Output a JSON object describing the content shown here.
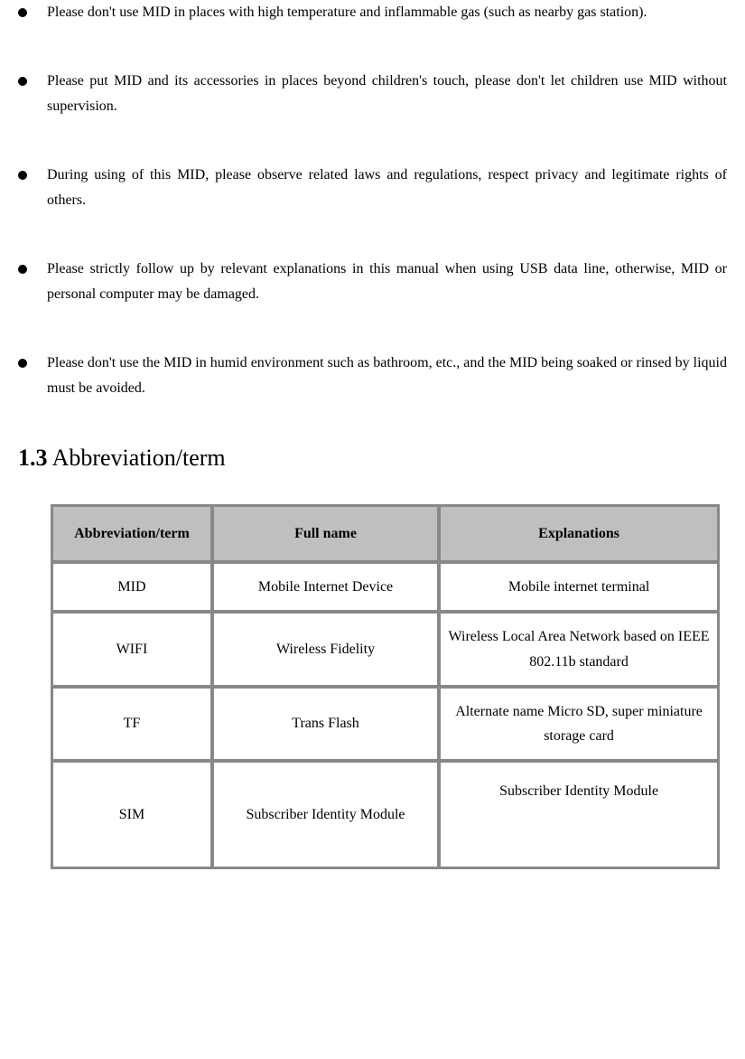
{
  "bullets": [
    "Please don't use MID in places with high temperature and inflammable gas (such as nearby gas station).",
    "Please put MID and its accessories in places beyond children's touch, please don't let children use MID without supervision.",
    "During using of this MID, please observe related laws and regulations, respect privacy and legitimate rights of others.",
    "Please strictly follow up by relevant explanations in this manual when using USB data line, otherwise, MID or personal computer may be damaged.",
    "Please don't use the MID in humid environment such as bathroom, etc., and the MID being soaked or rinsed by liquid must be avoided."
  ],
  "heading_num": "1.3",
  "heading_text": "Abbreviation/term",
  "table": {
    "headers": [
      "Abbreviation/term",
      "Full name",
      "Explanations"
    ],
    "rows": [
      [
        "MID",
        "Mobile Internet Device",
        "Mobile internet terminal"
      ],
      [
        "WIFI",
        "Wireless Fidelity",
        "Wireless Local Area Network based on IEEE 802.11b standard"
      ],
      [
        "TF",
        "Trans Flash",
        "Alternate name Micro SD, super miniature storage card"
      ],
      [
        "SIM",
        "Subscriber Identity Module",
        "Subscriber Identity Module"
      ]
    ]
  }
}
